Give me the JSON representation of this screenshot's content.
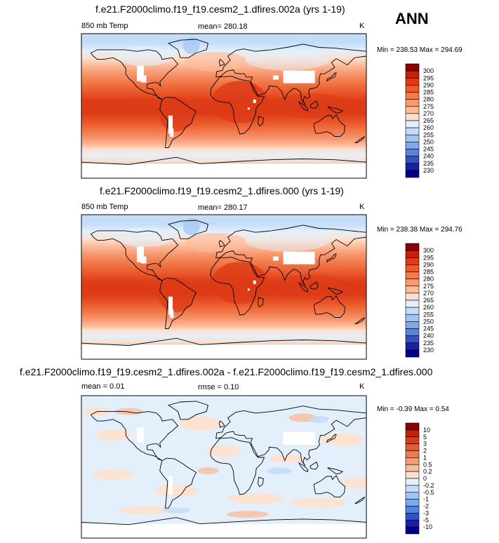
{
  "season": "ANN",
  "panels": [
    {
      "title": "f.e21.F2000climo.f19_f19.cesm2_1.dfires.002a (yrs 1-19)",
      "left_label": "850 mb Temp",
      "center_label": "mean= 280.18",
      "units": "K",
      "minmax": "Min = 238.53 Max = 294.69"
    },
    {
      "title": "f.e21.F2000climo.f19_f19.cesm2_1.dfires.000 (yrs 1-19)",
      "left_label": "850 mb Temp",
      "center_label": "mean= 280.17",
      "units": "K",
      "minmax": "Min = 238.38 Max = 294.76"
    },
    {
      "title": "f.e21.F2000climo.f19_f19.cesm2_1.dfires.002a - f.e21.F2000climo.f19_f19.cesm2_1.dfires.000",
      "left_label": "mean =   0.01",
      "center_label": "rmse =   0.10",
      "units": "K",
      "minmax": "Min =  -0.39 Max =   0.54"
    }
  ],
  "chart_data": [
    {
      "type": "heatmap",
      "variable": "850 mb Temp",
      "units": "K",
      "colorbar": {
        "levels": [
          "300",
          "295",
          "290",
          "285",
          "280",
          "275",
          "270",
          "265",
          "260",
          "255",
          "250",
          "245",
          "240",
          "235",
          "230"
        ],
        "colors": [
          "#8b0000",
          "#c4200a",
          "#dd3b17",
          "#ea5a2c",
          "#f27b4c",
          "#f89a72",
          "#fbbb9a",
          "#fde0cc",
          "#e3f0fc",
          "#c3dcf8",
          "#9fc6f2",
          "#7ba9ea",
          "#5683dc",
          "#3251c2",
          "#1a1ea8",
          "#000086"
        ]
      },
      "mean": 280.18,
      "min": 238.53,
      "max": 294.69
    },
    {
      "type": "heatmap",
      "variable": "850 mb Temp",
      "units": "K",
      "colorbar": {
        "levels": [
          "300",
          "295",
          "290",
          "285",
          "280",
          "275",
          "270",
          "265",
          "260",
          "255",
          "250",
          "245",
          "240",
          "235",
          "230"
        ],
        "colors": [
          "#8b0000",
          "#c4200a",
          "#dd3b17",
          "#ea5a2c",
          "#f27b4c",
          "#f89a72",
          "#fbbb9a",
          "#fde0cc",
          "#e3f0fc",
          "#c3dcf8",
          "#9fc6f2",
          "#7ba9ea",
          "#5683dc",
          "#3251c2",
          "#1a1ea8",
          "#000086"
        ]
      },
      "mean": 280.17,
      "min": 238.38,
      "max": 294.76
    },
    {
      "type": "heatmap",
      "variable": "difference",
      "units": "K",
      "colorbar": {
        "levels": [
          "10",
          "5",
          "3",
          "2",
          "1",
          "0.5",
          "0.2",
          "0",
          "-0.2",
          "-0.5",
          "-1",
          "-2",
          "-3",
          "-5",
          "-10"
        ],
        "colors": [
          "#8b0000",
          "#c4200a",
          "#dd3b17",
          "#ea5a2c",
          "#f27b4c",
          "#f89a72",
          "#fbbb9a",
          "#fde0cc",
          "#e3f0fc",
          "#c3dcf8",
          "#9fc6f2",
          "#7ba9ea",
          "#5683dc",
          "#3251c2",
          "#1a1ea8",
          "#000086"
        ]
      },
      "mean": 0.01,
      "rmse": 0.1,
      "min": -0.39,
      "max": 0.54
    }
  ]
}
